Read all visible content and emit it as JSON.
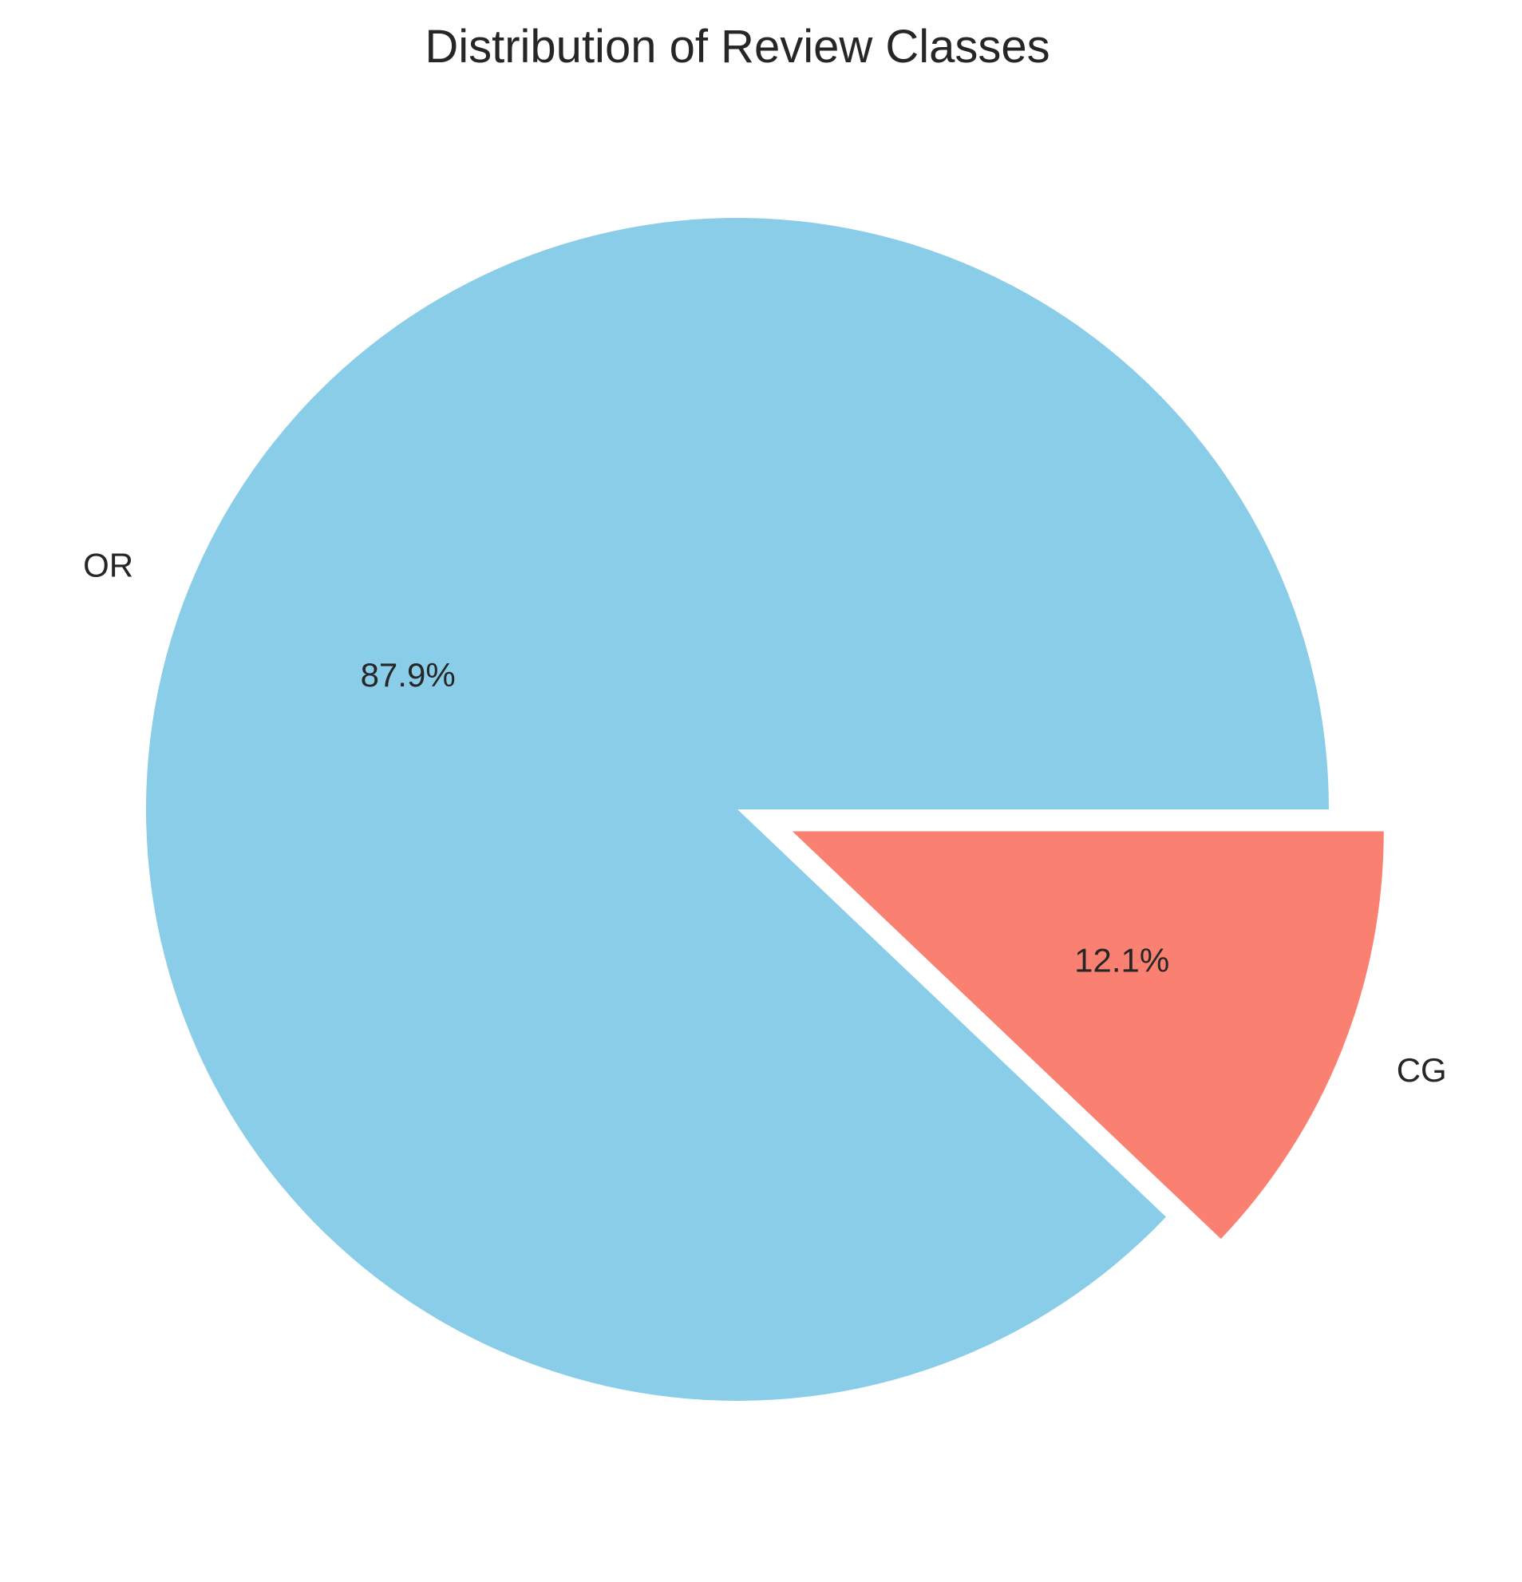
{
  "chart_data": {
    "type": "pie",
    "title": "Distribution of Review Classes",
    "slices": [
      {
        "label": "OR",
        "value": 87.9,
        "pct_label": "87.9%",
        "color": "#89CDE9",
        "exploded": false
      },
      {
        "label": "CG",
        "value": 12.1,
        "pct_label": "12.1%",
        "color": "#FA8072",
        "exploded": true
      }
    ],
    "start_angle_deg": 0,
    "direction": "counterclockwise",
    "legend": "none"
  }
}
